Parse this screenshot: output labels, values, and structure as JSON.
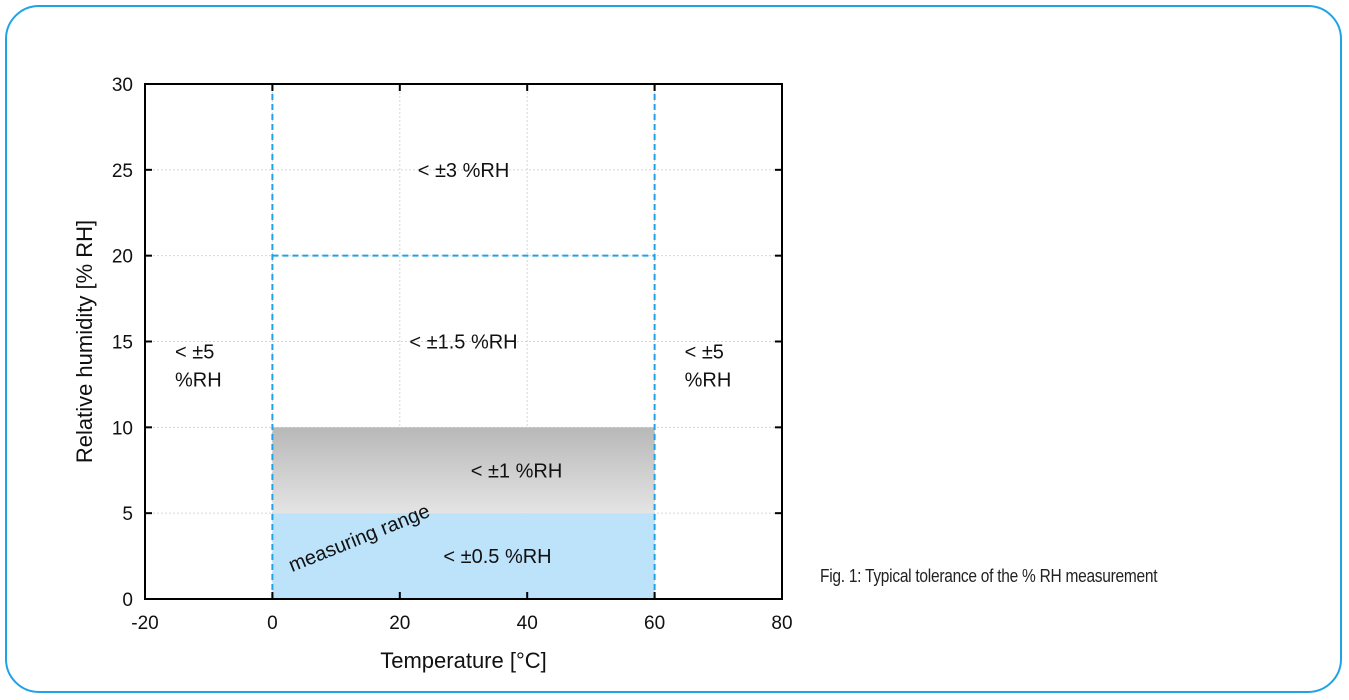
{
  "caption": "Fig. 1: Typical tolerance of the % RH measurement",
  "colors": {
    "frame": "#1fa3e6",
    "dashed_lines": "#1fa3e6",
    "gray_band_top": "#b8b8b8",
    "gray_band_bottom": "#e4e4e4",
    "blue_band": "#bde3fa"
  },
  "chart_data": {
    "type": "area",
    "xlabel": "Temperature [°C]",
    "ylabel": "Relative humidity [% RH]",
    "xlim": [
      -20,
      80
    ],
    "ylim": [
      0,
      30
    ],
    "x_ticks": [
      -20,
      0,
      20,
      40,
      60,
      80
    ],
    "y_ticks": [
      0,
      5,
      10,
      15,
      20,
      25,
      30
    ],
    "grid": true,
    "regions": [
      {
        "label": "< ±0.5 %RH",
        "x": [
          0,
          60
        ],
        "y": [
          0,
          5
        ],
        "fill": "blue"
      },
      {
        "label": "< ±1 %RH",
        "x": [
          0,
          60
        ],
        "y": [
          5,
          10
        ],
        "fill": "gray"
      },
      {
        "label": "< ±1.5 %RH",
        "x": [
          0,
          60
        ],
        "y": [
          10,
          20
        ],
        "fill": "none"
      },
      {
        "label": "< ±3 %RH",
        "x": [
          0,
          60
        ],
        "y": [
          20,
          30
        ],
        "fill": "none"
      },
      {
        "label_lines": [
          "< ±5",
          "%RH"
        ],
        "x": [
          -20,
          0
        ],
        "y": [
          0,
          30
        ],
        "fill": "none"
      },
      {
        "label_lines": [
          "< ±5",
          "%RH"
        ],
        "x": [
          60,
          80
        ],
        "y": [
          0,
          30
        ],
        "fill": "none"
      }
    ],
    "dashed_lines": [
      {
        "orientation": "vertical",
        "x": 0,
        "y": [
          0,
          30
        ]
      },
      {
        "orientation": "vertical",
        "x": 60,
        "y": [
          0,
          30
        ]
      },
      {
        "orientation": "horizontal",
        "y": 20,
        "x": [
          0,
          60
        ]
      }
    ],
    "annotation": "measuring range"
  }
}
